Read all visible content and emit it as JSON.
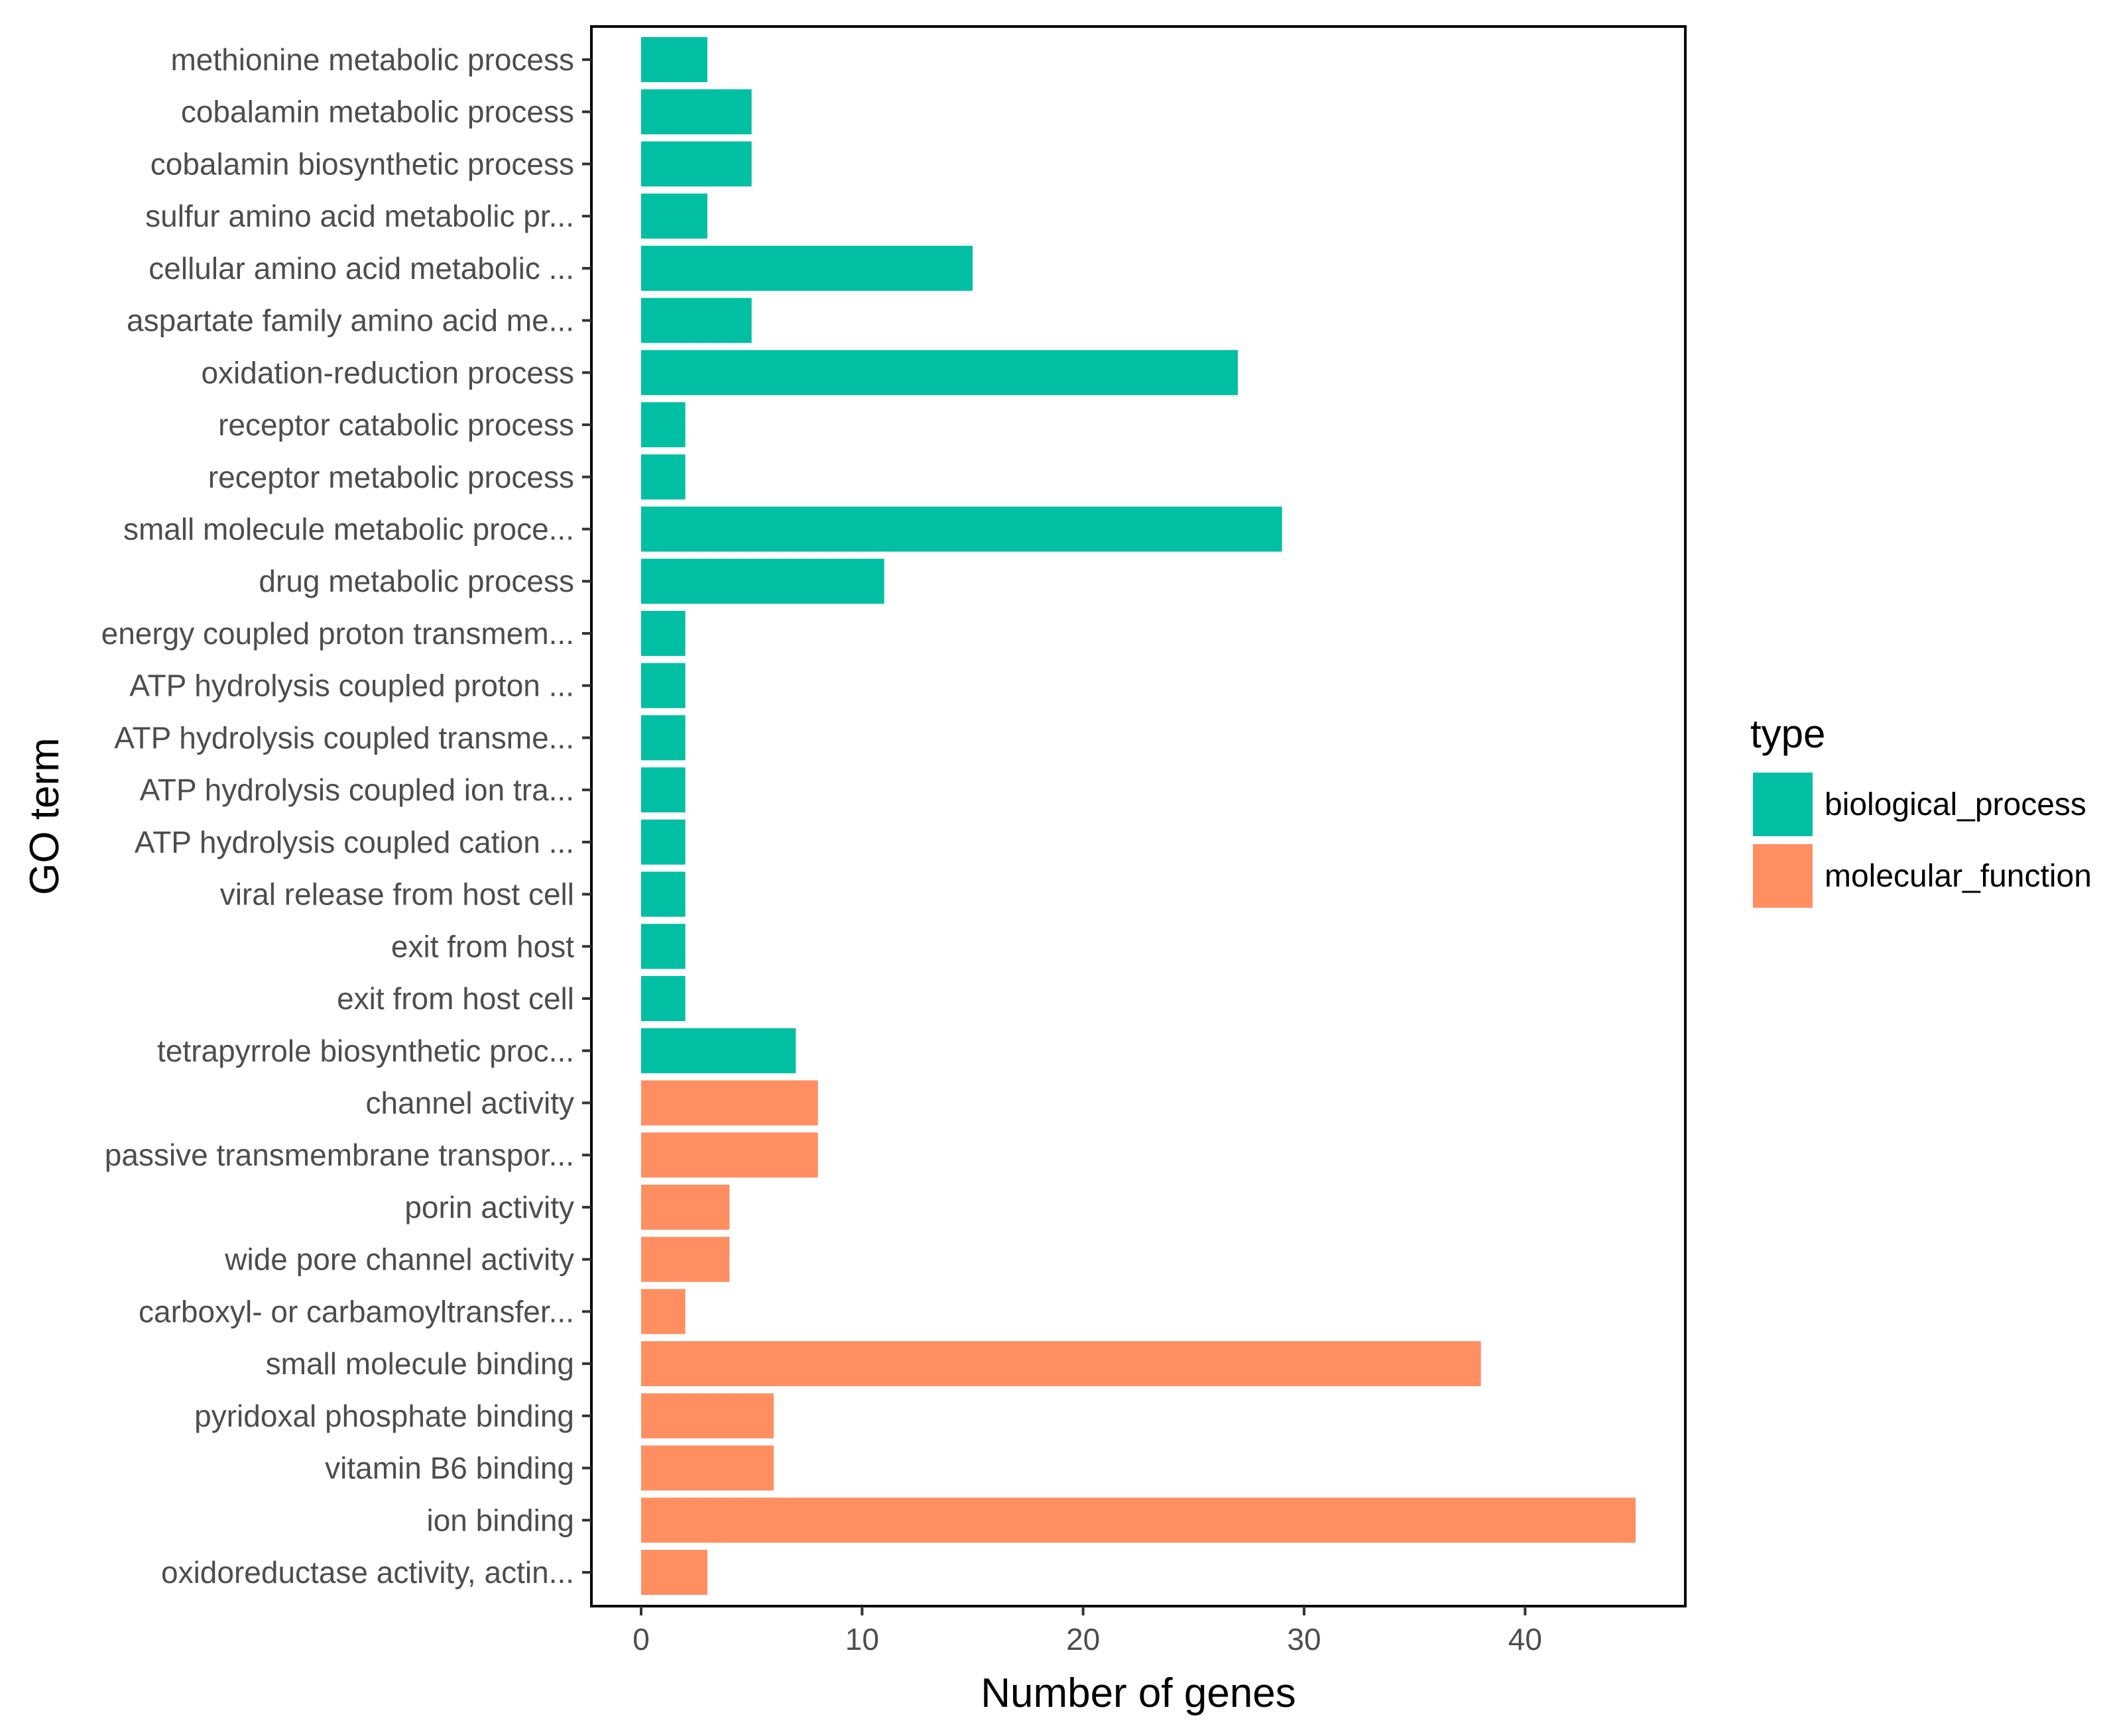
{
  "chart_data": {
    "type": "bar",
    "orientation": "horizontal",
    "xlabel": "Number of genes",
    "ylabel": "GO term",
    "xlim": [
      -2.25,
      47.25
    ],
    "xticks": [
      0,
      10,
      20,
      30,
      40
    ],
    "xtick_labels": [
      "0",
      "10",
      "20",
      "30",
      "40"
    ],
    "grid": false,
    "legend": {
      "title": "type",
      "position": "right",
      "entries": [
        {
          "name": "biological_process",
          "color": "#00BFA3"
        },
        {
          "name": "molecular_function",
          "color": "#FF8F61"
        }
      ]
    },
    "bars": [
      {
        "label": "methionine metabolic process",
        "value": 3,
        "type": "biological_process"
      },
      {
        "label": "cobalamin metabolic process",
        "value": 5,
        "type": "biological_process"
      },
      {
        "label": "cobalamin biosynthetic process",
        "value": 5,
        "type": "biological_process"
      },
      {
        "label": "sulfur amino acid metabolic pr...",
        "value": 3,
        "type": "biological_process"
      },
      {
        "label": "cellular amino acid metabolic ...",
        "value": 15,
        "type": "biological_process"
      },
      {
        "label": "aspartate family amino acid me...",
        "value": 5,
        "type": "biological_process"
      },
      {
        "label": "oxidation-reduction process",
        "value": 27,
        "type": "biological_process"
      },
      {
        "label": "receptor catabolic process",
        "value": 2,
        "type": "biological_process"
      },
      {
        "label": "receptor metabolic process",
        "value": 2,
        "type": "biological_process"
      },
      {
        "label": "small molecule metabolic proce...",
        "value": 29,
        "type": "biological_process"
      },
      {
        "label": "drug metabolic process",
        "value": 11,
        "type": "biological_process"
      },
      {
        "label": "energy coupled proton transmem...",
        "value": 2,
        "type": "biological_process"
      },
      {
        "label": "ATP hydrolysis coupled proton ...",
        "value": 2,
        "type": "biological_process"
      },
      {
        "label": "ATP hydrolysis coupled transme...",
        "value": 2,
        "type": "biological_process"
      },
      {
        "label": "ATP hydrolysis coupled ion tra...",
        "value": 2,
        "type": "biological_process"
      },
      {
        "label": "ATP hydrolysis coupled cation ...",
        "value": 2,
        "type": "biological_process"
      },
      {
        "label": "viral release from host cell",
        "value": 2,
        "type": "biological_process"
      },
      {
        "label": "exit from host",
        "value": 2,
        "type": "biological_process"
      },
      {
        "label": "exit from host cell",
        "value": 2,
        "type": "biological_process"
      },
      {
        "label": "tetrapyrrole biosynthetic proc...",
        "value": 7,
        "type": "biological_process"
      },
      {
        "label": "channel activity",
        "value": 8,
        "type": "molecular_function"
      },
      {
        "label": "passive transmembrane transpor...",
        "value": 8,
        "type": "molecular_function"
      },
      {
        "label": "porin activity",
        "value": 4,
        "type": "molecular_function"
      },
      {
        "label": "wide pore channel activity",
        "value": 4,
        "type": "molecular_function"
      },
      {
        "label": "carboxyl- or carbamoyltransfer...",
        "value": 2,
        "type": "molecular_function"
      },
      {
        "label": "small molecule binding",
        "value": 38,
        "type": "molecular_function"
      },
      {
        "label": "pyridoxal phosphate binding",
        "value": 6,
        "type": "molecular_function"
      },
      {
        "label": "vitamin B6 binding",
        "value": 6,
        "type": "molecular_function"
      },
      {
        "label": "ion binding",
        "value": 45,
        "type": "molecular_function"
      },
      {
        "label": "oxidoreductase activity, actin...",
        "value": 3,
        "type": "molecular_function"
      }
    ]
  }
}
